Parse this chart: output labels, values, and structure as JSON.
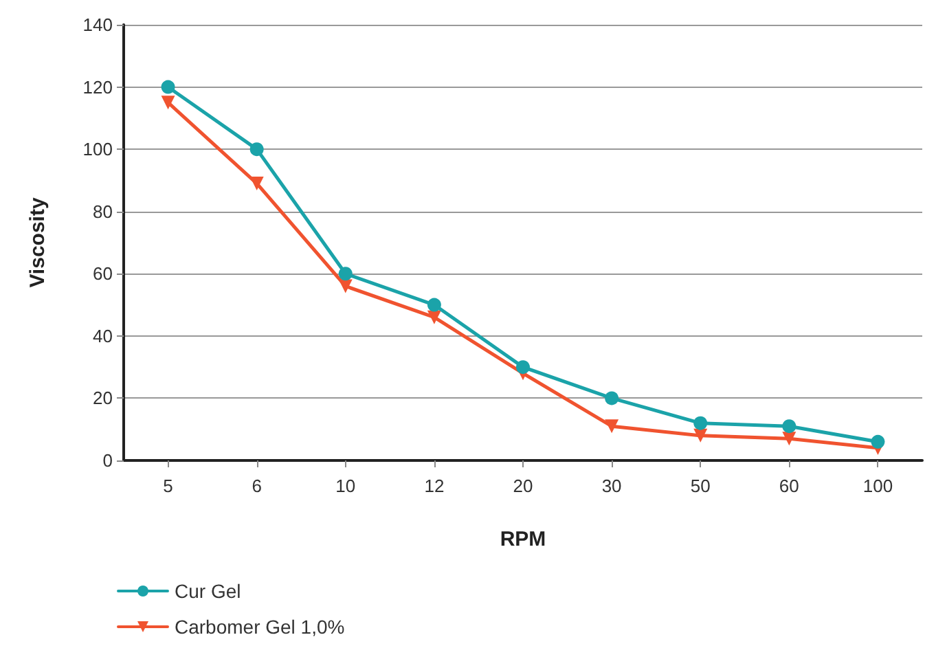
{
  "chart_data": {
    "type": "line",
    "xlabel": "RPM",
    "ylabel": "Viscosity",
    "categories": [
      "5",
      "6",
      "10",
      "12",
      "20",
      "30",
      "50",
      "60",
      "100"
    ],
    "series": [
      {
        "name": "Cur Gel",
        "color": "#1ba3a9",
        "marker": "circle",
        "values": [
          120,
          100,
          60,
          50,
          30,
          20,
          12,
          11,
          6
        ]
      },
      {
        "name": "Carbomer Gel 1,0%",
        "color": "#f0532f",
        "marker": "triangle",
        "values": [
          115,
          89,
          56,
          46,
          28,
          11,
          8,
          7,
          4
        ]
      }
    ],
    "ylim": [
      0,
      140
    ],
    "yticks": [
      0,
      20,
      40,
      60,
      80,
      100,
      120,
      140
    ],
    "grid": "y",
    "legend": "bottom left",
    "line_style": "solid"
  }
}
